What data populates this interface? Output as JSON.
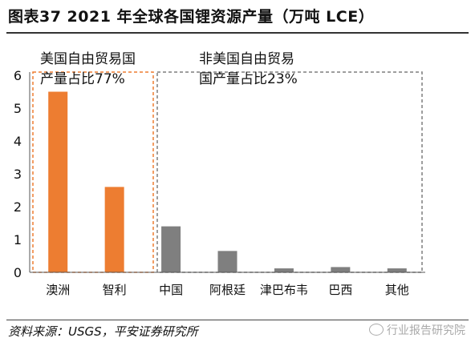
{
  "figure": {
    "title": "图表37    2021 年全球各国锂资源产量（万吨 LCE）",
    "source": "资料来源：USGS，平安证券研究所",
    "watermark": "行业报告研究院"
  },
  "chart_data": {
    "type": "bar",
    "title": "",
    "xlabel": "",
    "ylabel": "",
    "ylim": [
      0,
      6
    ],
    "yticks": [
      "0",
      "1",
      "2",
      "3",
      "4",
      "5",
      "6"
    ],
    "grid": false,
    "legend": "none",
    "categories": [
      "澳洲",
      "智利",
      "中国",
      "阿根廷",
      "津巴布韦",
      "巴西",
      "其他"
    ],
    "values": [
      5.5,
      2.6,
      1.4,
      0.65,
      0.12,
      0.16,
      0.12
    ],
    "bar_colors": [
      "#ED7D31",
      "#ED7D31",
      "#7F7F7F",
      "#7F7F7F",
      "#7F7F7F",
      "#7F7F7F",
      "#7F7F7F"
    ],
    "annotations": [
      {
        "group": "fta",
        "lines": [
          "美国自由贸易国",
          "产量占比77%"
        ],
        "box_color": "#ED7D31"
      },
      {
        "group": "non_fta",
        "lines": [
          "非美国自由贸易",
          "国产量占比23%"
        ],
        "box_color": "#7F7F7F"
      }
    ]
  }
}
